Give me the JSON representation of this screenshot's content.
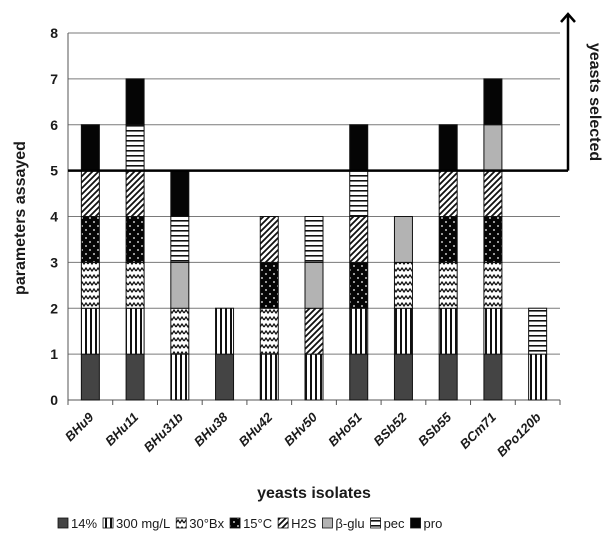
{
  "chart_data": {
    "type": "bar",
    "stacked": true,
    "title": "",
    "xlabel": "yeasts isolates",
    "ylabel": "parameters assayed",
    "ylim": [
      0,
      8
    ],
    "yticks": [
      0,
      1,
      2,
      3,
      4,
      5,
      6,
      7,
      8
    ],
    "grid": "horizontal",
    "legend_position": "bottom",
    "categories": [
      "BHu9",
      "BHu11",
      "BHu31b",
      "BHu38",
      "BHu42",
      "BHv50",
      "BHo51",
      "BSb52",
      "BSb55",
      "BCm71",
      "BPo120b"
    ],
    "series_keys": [
      "14%",
      "300 mg/L",
      "30°Bx",
      "15°C",
      "H2S",
      "β-glu",
      "pec",
      "pro"
    ],
    "legend": [
      {
        "key": "14%",
        "label": "14%",
        "pattern": "solid-dark"
      },
      {
        "key": "300 mg/L",
        "label": "300 mg/L",
        "pattern": "vertical-stripes"
      },
      {
        "key": "30°Bx",
        "label": "30°Bx",
        "pattern": "zigzag"
      },
      {
        "key": "15°C",
        "label": "15°C",
        "pattern": "dots-on-black"
      },
      {
        "key": "H2S",
        "label": "H2S",
        "pattern": "diagonal-stripes"
      },
      {
        "key": "β-glu",
        "label": "β-glu",
        "pattern": "solid-gray"
      },
      {
        "key": "pec",
        "label": "pec",
        "pattern": "horizontal-stripes"
      },
      {
        "key": "pro",
        "label": "pro",
        "pattern": "solid-black"
      }
    ],
    "stacks": [
      [
        "14%",
        "300 mg/L",
        "30°Bx",
        "15°C",
        "H2S",
        "pro"
      ],
      [
        "14%",
        "300 mg/L",
        "30°Bx",
        "15°C",
        "H2S",
        "pec",
        "pro"
      ],
      [
        "300 mg/L",
        "30°Bx",
        "β-glu",
        "pec",
        "pro"
      ],
      [
        "14%",
        "300 mg/L"
      ],
      [
        "300 mg/L",
        "30°Bx",
        "15°C",
        "H2S"
      ],
      [
        "300 mg/L",
        "H2S",
        "β-glu",
        "pec"
      ],
      [
        "14%",
        "300 mg/L",
        "15°C",
        "H2S",
        "pec",
        "pro"
      ],
      [
        "14%",
        "300 mg/L",
        "30°Bx",
        "β-glu"
      ],
      [
        "14%",
        "300 mg/L",
        "30°Bx",
        "15°C",
        "H2S",
        "pro"
      ],
      [
        "14%",
        "300 mg/L",
        "30°Bx",
        "15°C",
        "H2S",
        "β-glu",
        "pro"
      ],
      [
        "300 mg/L",
        "pec"
      ]
    ],
    "totals": [
      6,
      7,
      5,
      2,
      4,
      4,
      6,
      4,
      6,
      7,
      2
    ],
    "threshold": {
      "value": 5,
      "label": "yeasts selected"
    }
  }
}
